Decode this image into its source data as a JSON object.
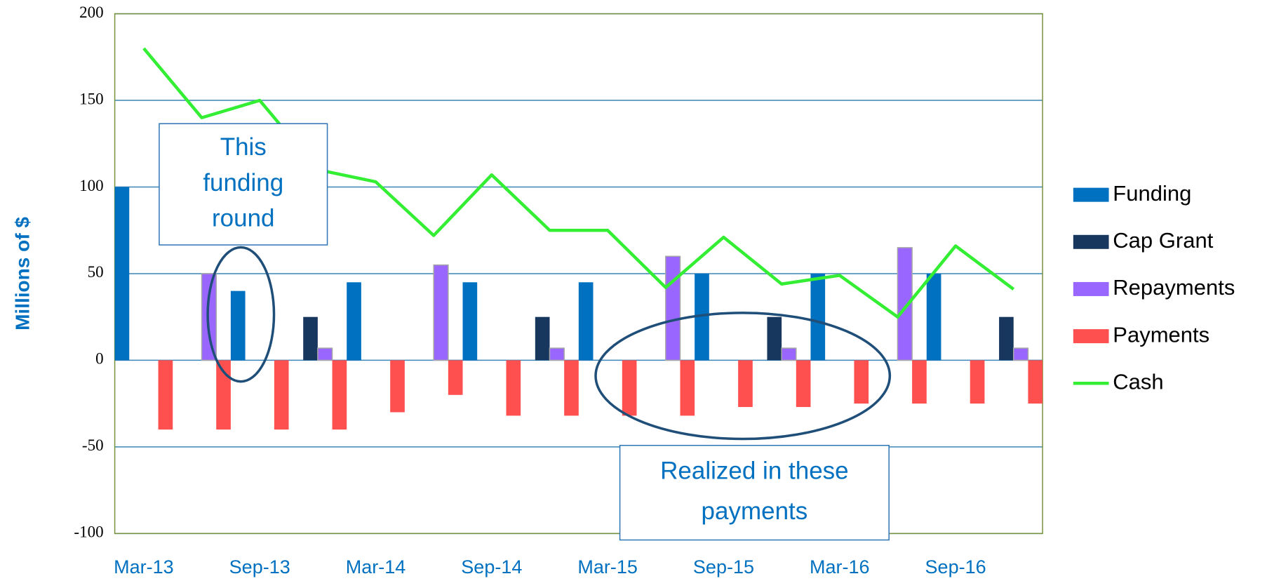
{
  "chart_data": {
    "type": "bar",
    "y_label": "Millions of $",
    "categories": [
      "Mar-13",
      null,
      "Sep-13",
      null,
      "Mar-14",
      null,
      "Sep-14",
      null,
      "Mar-15",
      null,
      "Sep-15",
      null,
      "Mar-16",
      null,
      "Sep-16",
      null
    ],
    "series": [
      {
        "name": "Funding",
        "color": "#0070c0",
        "values": [
          100,
          null,
          40,
          null,
          45,
          null,
          45,
          null,
          45,
          null,
          50,
          null,
          50,
          null,
          50,
          null
        ]
      },
      {
        "name": "Cap Grant",
        "color": "#17375e",
        "values": [
          null,
          null,
          null,
          25,
          null,
          null,
          null,
          25,
          null,
          null,
          null,
          25,
          null,
          null,
          null,
          25
        ]
      },
      {
        "name": "Repayments",
        "color": "#9966ff",
        "values": [
          null,
          50,
          null,
          7,
          null,
          55,
          null,
          7,
          null,
          60,
          null,
          7,
          null,
          65,
          null,
          7
        ]
      },
      {
        "name": "Payments",
        "color": "#ff5050",
        "values": [
          -40,
          -40,
          -40,
          -40,
          -30,
          -20,
          -32,
          -32,
          -32,
          -32,
          -27,
          -27,
          -25,
          -25,
          -25,
          -25
        ]
      },
      {
        "name": "Cash",
        "color": "#33ee33",
        "type": "line",
        "values": [
          180,
          140,
          150,
          110,
          103,
          72,
          107,
          75,
          75,
          42,
          71,
          44,
          49,
          25,
          66,
          41
        ]
      }
    ],
    "ylim": [
      -100,
      200
    ],
    "yticks": [
      -100,
      -50,
      0,
      50,
      100,
      150,
      200
    ],
    "grid": true,
    "legend": "right",
    "annotations": [
      {
        "lines": [
          "This",
          "funding",
          "round"
        ]
      },
      {
        "lines": [
          "Realized in these",
          "payments"
        ]
      }
    ]
  }
}
